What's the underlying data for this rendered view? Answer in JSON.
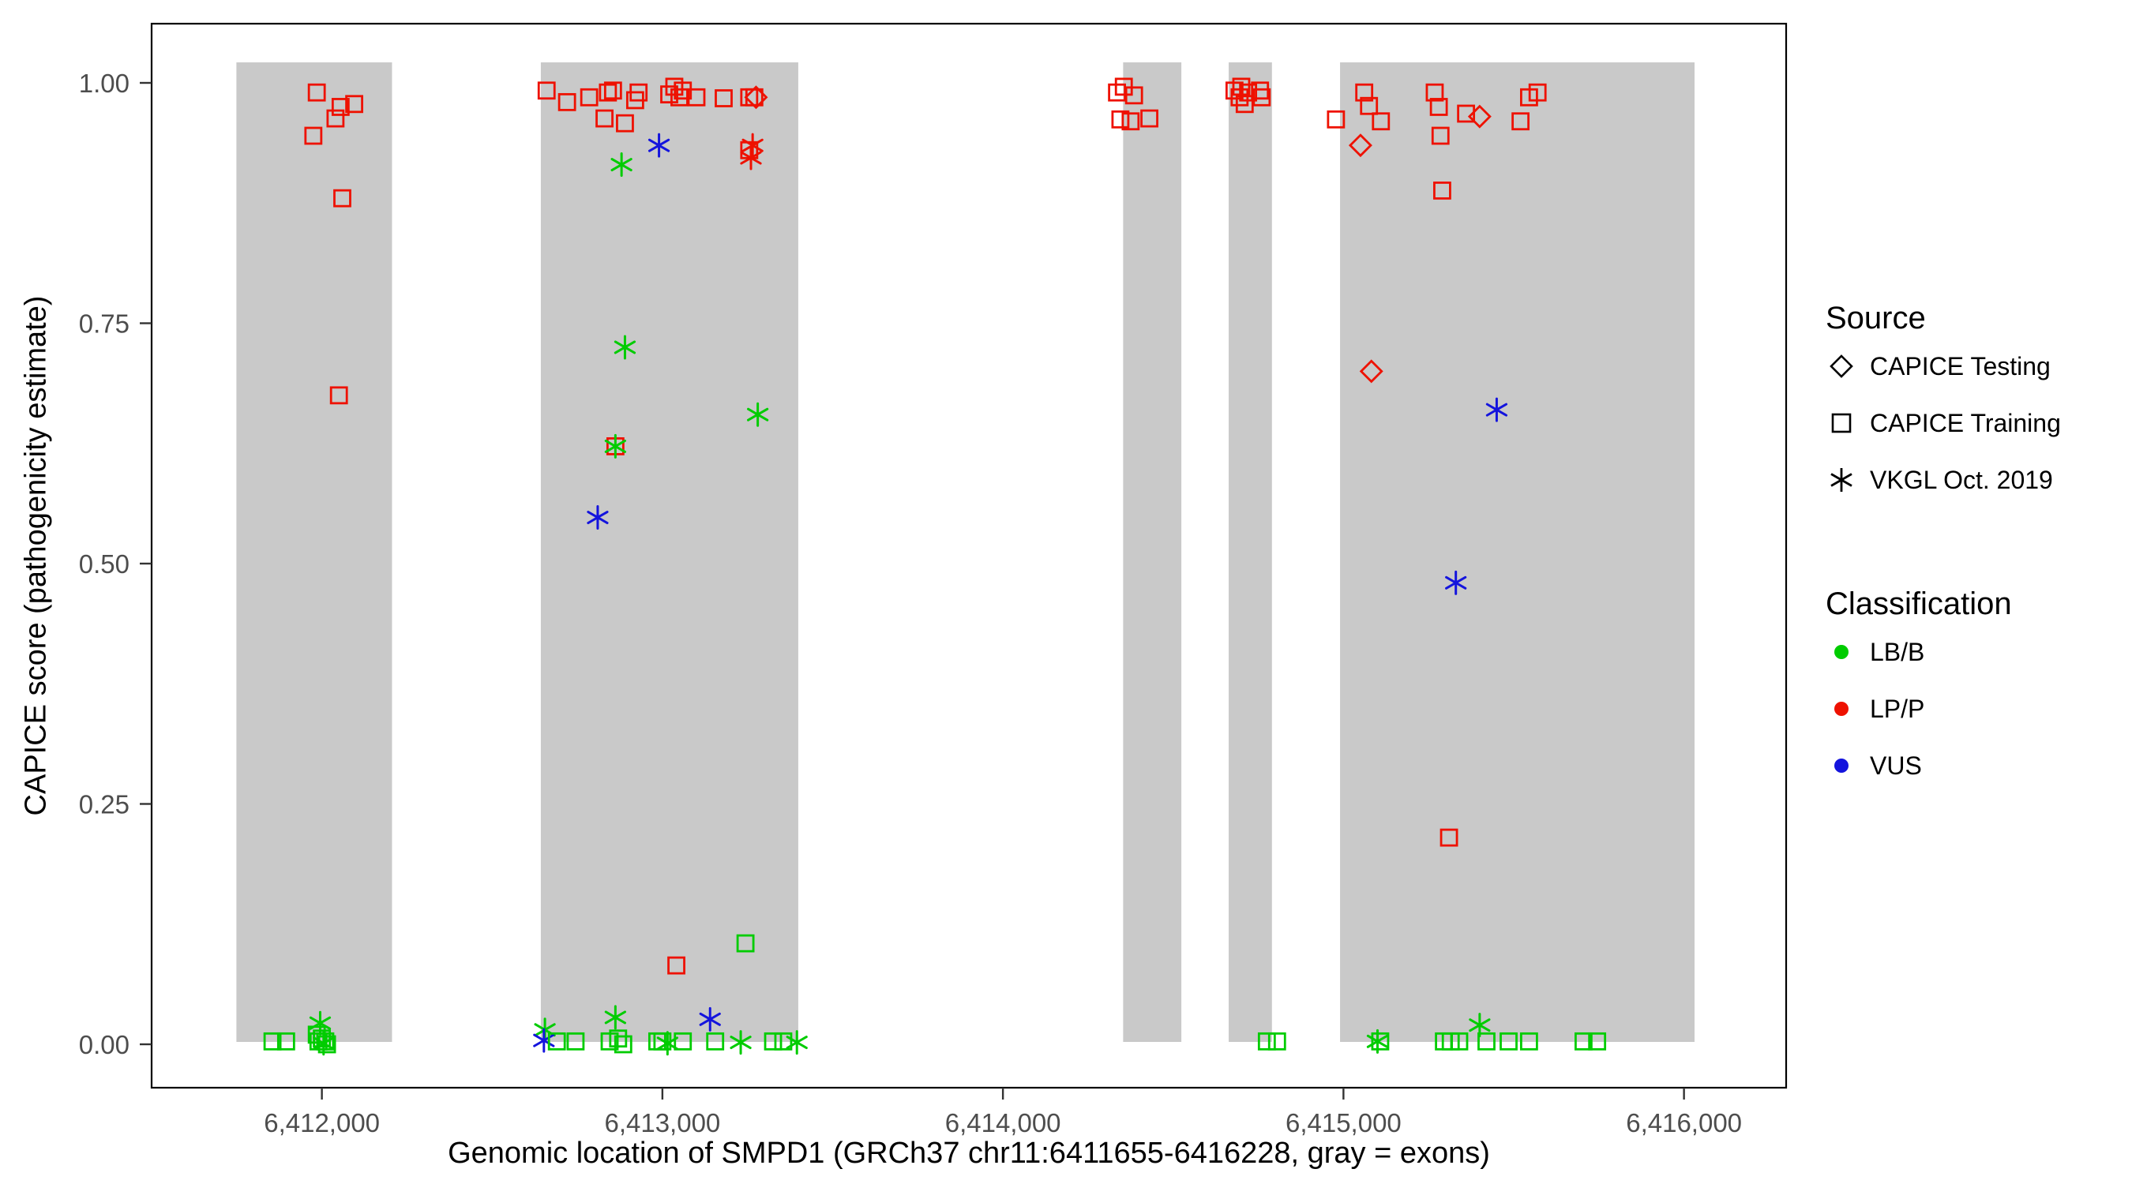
{
  "colors": {
    "LB/B": "#00CC00",
    "LP/P": "#EE1100",
    "VUS": "#1414DD",
    "exon": "#C9C9C9",
    "panel_border": "#000000",
    "tick_mark": "#333333",
    "tick_label": "#4D4D4D",
    "symbol_black": "#000000"
  },
  "chart_data": {
    "type": "scatter",
    "title": "",
    "xlabel": "Genomic location of SMPD1 (GRCh37 chr11:6411655-6416228, gray = exons)",
    "ylabel": "CAPICE score (pathogenicity estimate)",
    "xlim": [
      6411500,
      6416300
    ],
    "ylim": [
      0,
      1
    ],
    "grid": false,
    "legend_position": "right",
    "x_ticks": [
      {
        "value": 6412000,
        "label": "6,412,000"
      },
      {
        "value": 6413000,
        "label": "6,413,000"
      },
      {
        "value": 6414000,
        "label": "6,414,000"
      },
      {
        "value": 6415000,
        "label": "6,415,000"
      },
      {
        "value": 6416000,
        "label": "6,416,000"
      }
    ],
    "y_ticks": [
      {
        "value": 0.0,
        "label": "0.00"
      },
      {
        "value": 0.25,
        "label": "0.25"
      },
      {
        "value": 0.5,
        "label": "0.50"
      },
      {
        "value": 0.75,
        "label": "0.75"
      },
      {
        "value": 1.0,
        "label": "1.00"
      }
    ],
    "exons": [
      [
        6411749,
        6412206
      ],
      [
        6412643,
        6413399
      ],
      [
        6414353,
        6414524
      ],
      [
        6414663,
        6414790
      ],
      [
        6414990,
        6416031
      ]
    ],
    "points": [
      {
        "x": 6411985,
        "y": 0.99,
        "shape": "square",
        "class": "LP/P"
      },
      {
        "x": 6411975,
        "y": 0.945,
        "shape": "square",
        "class": "LP/P"
      },
      {
        "x": 6412040,
        "y": 0.963,
        "shape": "square",
        "class": "LP/P"
      },
      {
        "x": 6412055,
        "y": 0.975,
        "shape": "square",
        "class": "LP/P"
      },
      {
        "x": 6412095,
        "y": 0.978,
        "shape": "square",
        "class": "LP/P"
      },
      {
        "x": 6412060,
        "y": 0.88,
        "shape": "square",
        "class": "LP/P"
      },
      {
        "x": 6412050,
        "y": 0.675,
        "shape": "square",
        "class": "LP/P"
      },
      {
        "x": 6411855,
        "y": 0.003,
        "shape": "square",
        "class": "LB/B"
      },
      {
        "x": 6411895,
        "y": 0.003,
        "shape": "square",
        "class": "LB/B"
      },
      {
        "x": 6411995,
        "y": 0.022,
        "shape": "asterisk",
        "class": "LB/B"
      },
      {
        "x": 6411985,
        "y": 0.01,
        "shape": "square",
        "class": "LB/B"
      },
      {
        "x": 6411990,
        "y": 0.003,
        "shape": "square",
        "class": "LB/B"
      },
      {
        "x": 6412000,
        "y": 0.006,
        "shape": "square",
        "class": "LB/B"
      },
      {
        "x": 6412010,
        "y": 0.003,
        "shape": "square",
        "class": "LB/B"
      },
      {
        "x": 6412015,
        "y": 0.0,
        "shape": "square",
        "class": "LB/B"
      },
      {
        "x": 6412005,
        "y": 0.001,
        "shape": "asterisk",
        "class": "LB/B"
      },
      {
        "x": 6412660,
        "y": 0.992,
        "shape": "square",
        "class": "LP/P"
      },
      {
        "x": 6412720,
        "y": 0.98,
        "shape": "square",
        "class": "LP/P"
      },
      {
        "x": 6412785,
        "y": 0.985,
        "shape": "square",
        "class": "LP/P"
      },
      {
        "x": 6412840,
        "y": 0.99,
        "shape": "square",
        "class": "LP/P"
      },
      {
        "x": 6412855,
        "y": 0.992,
        "shape": "square",
        "class": "LP/P"
      },
      {
        "x": 6412920,
        "y": 0.982,
        "shape": "square",
        "class": "LP/P"
      },
      {
        "x": 6412930,
        "y": 0.99,
        "shape": "square",
        "class": "LP/P"
      },
      {
        "x": 6413020,
        "y": 0.988,
        "shape": "square",
        "class": "LP/P"
      },
      {
        "x": 6413035,
        "y": 0.996,
        "shape": "square",
        "class": "LP/P"
      },
      {
        "x": 6413050,
        "y": 0.985,
        "shape": "square",
        "class": "LP/P"
      },
      {
        "x": 6413060,
        "y": 0.992,
        "shape": "square",
        "class": "LP/P"
      },
      {
        "x": 6413100,
        "y": 0.985,
        "shape": "square",
        "class": "LP/P"
      },
      {
        "x": 6413180,
        "y": 0.984,
        "shape": "square",
        "class": "LP/P"
      },
      {
        "x": 6413255,
        "y": 0.985,
        "shape": "square",
        "class": "LP/P"
      },
      {
        "x": 6413270,
        "y": 0.985,
        "shape": "square",
        "class": "LP/P"
      },
      {
        "x": 6413275,
        "y": 0.985,
        "shape": "diamond",
        "class": "LP/P"
      },
      {
        "x": 6412830,
        "y": 0.963,
        "shape": "square",
        "class": "LP/P"
      },
      {
        "x": 6412890,
        "y": 0.958,
        "shape": "square",
        "class": "LP/P"
      },
      {
        "x": 6412880,
        "y": 0.915,
        "shape": "asterisk",
        "class": "LB/B"
      },
      {
        "x": 6412990,
        "y": 0.935,
        "shape": "asterisk",
        "class": "VUS"
      },
      {
        "x": 6413255,
        "y": 0.93,
        "shape": "square",
        "class": "LP/P"
      },
      {
        "x": 6413265,
        "y": 0.935,
        "shape": "asterisk",
        "class": "LP/P"
      },
      {
        "x": 6413260,
        "y": 0.922,
        "shape": "asterisk",
        "class": "LP/P"
      },
      {
        "x": 6412890,
        "y": 0.725,
        "shape": "asterisk",
        "class": "LB/B"
      },
      {
        "x": 6413280,
        "y": 0.655,
        "shape": "asterisk",
        "class": "LB/B"
      },
      {
        "x": 6412862,
        "y": 0.622,
        "shape": "square",
        "class": "LP/P"
      },
      {
        "x": 6412862,
        "y": 0.622,
        "shape": "asterisk",
        "class": "LB/B"
      },
      {
        "x": 6412810,
        "y": 0.548,
        "shape": "asterisk",
        "class": "VUS"
      },
      {
        "x": 6413041,
        "y": 0.082,
        "shape": "square",
        "class": "LP/P"
      },
      {
        "x": 6413244,
        "y": 0.105,
        "shape": "square",
        "class": "LB/B"
      },
      {
        "x": 6412655,
        "y": 0.015,
        "shape": "asterisk",
        "class": "LB/B"
      },
      {
        "x": 6412652,
        "y": 0.004,
        "shape": "asterisk",
        "class": "VUS"
      },
      {
        "x": 6412690,
        "y": 0.003,
        "shape": "square",
        "class": "LB/B"
      },
      {
        "x": 6412745,
        "y": 0.003,
        "shape": "square",
        "class": "LB/B"
      },
      {
        "x": 6412862,
        "y": 0.028,
        "shape": "asterisk",
        "class": "LB/B"
      },
      {
        "x": 6412845,
        "y": 0.003,
        "shape": "square",
        "class": "LB/B"
      },
      {
        "x": 6412870,
        "y": 0.006,
        "shape": "square",
        "class": "LB/B"
      },
      {
        "x": 6412885,
        "y": 0.0,
        "shape": "square",
        "class": "LB/B"
      },
      {
        "x": 6412985,
        "y": 0.003,
        "shape": "square",
        "class": "LB/B"
      },
      {
        "x": 6413000,
        "y": 0.003,
        "shape": "square",
        "class": "LB/B"
      },
      {
        "x": 6413015,
        "y": 0.001,
        "shape": "asterisk",
        "class": "LB/B"
      },
      {
        "x": 6413060,
        "y": 0.003,
        "shape": "square",
        "class": "LB/B"
      },
      {
        "x": 6413140,
        "y": 0.026,
        "shape": "asterisk",
        "class": "VUS"
      },
      {
        "x": 6413155,
        "y": 0.003,
        "shape": "square",
        "class": "LB/B"
      },
      {
        "x": 6413230,
        "y": 0.002,
        "shape": "asterisk",
        "class": "LB/B"
      },
      {
        "x": 6413325,
        "y": 0.003,
        "shape": "square",
        "class": "LB/B"
      },
      {
        "x": 6413355,
        "y": 0.003,
        "shape": "square",
        "class": "LB/B"
      },
      {
        "x": 6413395,
        "y": 0.002,
        "shape": "asterisk",
        "class": "LB/B"
      },
      {
        "x": 6414335,
        "y": 0.99,
        "shape": "square",
        "class": "LP/P"
      },
      {
        "x": 6414355,
        "y": 0.996,
        "shape": "square",
        "class": "LP/P"
      },
      {
        "x": 6414385,
        "y": 0.987,
        "shape": "square",
        "class": "LP/P"
      },
      {
        "x": 6414345,
        "y": 0.962,
        "shape": "square",
        "class": "LP/P"
      },
      {
        "x": 6414375,
        "y": 0.96,
        "shape": "square",
        "class": "LP/P"
      },
      {
        "x": 6414430,
        "y": 0.963,
        "shape": "square",
        "class": "LP/P"
      },
      {
        "x": 6414680,
        "y": 0.992,
        "shape": "square",
        "class": "LP/P"
      },
      {
        "x": 6414695,
        "y": 0.985,
        "shape": "square",
        "class": "LP/P"
      },
      {
        "x": 6414700,
        "y": 0.996,
        "shape": "square",
        "class": "LP/P"
      },
      {
        "x": 6414710,
        "y": 0.978,
        "shape": "square",
        "class": "LP/P"
      },
      {
        "x": 6414720,
        "y": 0.99,
        "shape": "square",
        "class": "LP/P"
      },
      {
        "x": 6414755,
        "y": 0.992,
        "shape": "square",
        "class": "LP/P"
      },
      {
        "x": 6414760,
        "y": 0.985,
        "shape": "square",
        "class": "LP/P"
      },
      {
        "x": 6414775,
        "y": 0.003,
        "shape": "square",
        "class": "LB/B"
      },
      {
        "x": 6414805,
        "y": 0.003,
        "shape": "square",
        "class": "LB/B"
      },
      {
        "x": 6414978,
        "y": 0.962,
        "shape": "square",
        "class": "LP/P"
      },
      {
        "x": 6415061,
        "y": 0.99,
        "shape": "square",
        "class": "LP/P"
      },
      {
        "x": 6415075,
        "y": 0.976,
        "shape": "square",
        "class": "LP/P"
      },
      {
        "x": 6415050,
        "y": 0.935,
        "shape": "diamond",
        "class": "LP/P"
      },
      {
        "x": 6415110,
        "y": 0.96,
        "shape": "square",
        "class": "LP/P"
      },
      {
        "x": 6415082,
        "y": 0.7,
        "shape": "diamond",
        "class": "LP/P"
      },
      {
        "x": 6415268,
        "y": 0.99,
        "shape": "square",
        "class": "LP/P"
      },
      {
        "x": 6415280,
        "y": 0.975,
        "shape": "square",
        "class": "LP/P"
      },
      {
        "x": 6415285,
        "y": 0.945,
        "shape": "square",
        "class": "LP/P"
      },
      {
        "x": 6415290,
        "y": 0.888,
        "shape": "square",
        "class": "LP/P"
      },
      {
        "x": 6415360,
        "y": 0.968,
        "shape": "square",
        "class": "LP/P"
      },
      {
        "x": 6415400,
        "y": 0.965,
        "shape": "diamond",
        "class": "LP/P"
      },
      {
        "x": 6415520,
        "y": 0.96,
        "shape": "square",
        "class": "LP/P"
      },
      {
        "x": 6415545,
        "y": 0.985,
        "shape": "square",
        "class": "LP/P"
      },
      {
        "x": 6415570,
        "y": 0.99,
        "shape": "square",
        "class": "LP/P"
      },
      {
        "x": 6415450,
        "y": 0.66,
        "shape": "asterisk",
        "class": "VUS"
      },
      {
        "x": 6415330,
        "y": 0.48,
        "shape": "asterisk",
        "class": "VUS"
      },
      {
        "x": 6415310,
        "y": 0.215,
        "shape": "square",
        "class": "LP/P"
      },
      {
        "x": 6415100,
        "y": 0.003,
        "shape": "asterisk",
        "class": "LB/B"
      },
      {
        "x": 6415108,
        "y": 0.003,
        "shape": "square",
        "class": "LB/B"
      },
      {
        "x": 6415295,
        "y": 0.003,
        "shape": "square",
        "class": "LB/B"
      },
      {
        "x": 6415315,
        "y": 0.003,
        "shape": "square",
        "class": "LB/B"
      },
      {
        "x": 6415340,
        "y": 0.003,
        "shape": "square",
        "class": "LB/B"
      },
      {
        "x": 6415400,
        "y": 0.02,
        "shape": "asterisk",
        "class": "LB/B"
      },
      {
        "x": 6415420,
        "y": 0.003,
        "shape": "square",
        "class": "LB/B"
      },
      {
        "x": 6415485,
        "y": 0.003,
        "shape": "square",
        "class": "LB/B"
      },
      {
        "x": 6415545,
        "y": 0.003,
        "shape": "square",
        "class": "LB/B"
      },
      {
        "x": 6415705,
        "y": 0.003,
        "shape": "square",
        "class": "LB/B"
      },
      {
        "x": 6415745,
        "y": 0.003,
        "shape": "square",
        "class": "LB/B"
      }
    ]
  },
  "legend": {
    "source": {
      "title": "Source",
      "items": [
        {
          "label": "CAPICE Testing",
          "shape": "diamond"
        },
        {
          "label": "CAPICE Training",
          "shape": "square"
        },
        {
          "label": "VKGL Oct. 2019",
          "shape": "asterisk"
        }
      ]
    },
    "classification": {
      "title": "Classification",
      "items": [
        {
          "label": "LB/B",
          "color": "#00CC00"
        },
        {
          "label": "LP/P",
          "color": "#EE1100"
        },
        {
          "label": "VUS",
          "color": "#1414DD"
        }
      ]
    }
  }
}
